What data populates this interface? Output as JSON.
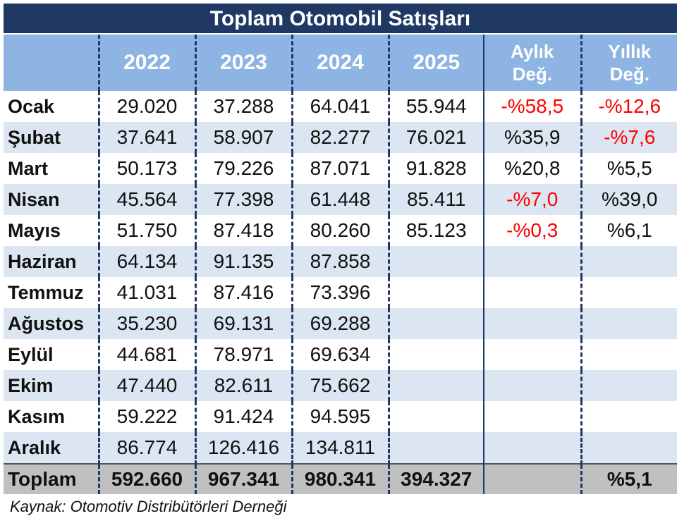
{
  "title": "Toplam Otomobil Satışları",
  "columns": {
    "years": [
      "2022",
      "2023",
      "2024",
      "2025"
    ],
    "monthly_change": [
      "Aylık",
      "Değ."
    ],
    "yearly_change": [
      "Yıllık",
      "Değ."
    ]
  },
  "rows": [
    {
      "month": "Ocak",
      "y2022": "29.020",
      "y2023": "37.288",
      "y2024": "64.041",
      "y2025": "55.944",
      "monthly": "-%58,5",
      "yearly": "-%12,6"
    },
    {
      "month": "Şubat",
      "y2022": "37.641",
      "y2023": "58.907",
      "y2024": "82.277",
      "y2025": "76.021",
      "monthly": "%35,9",
      "yearly": "-%7,6"
    },
    {
      "month": "Mart",
      "y2022": "50.173",
      "y2023": "79.226",
      "y2024": "87.071",
      "y2025": "91.828",
      "monthly": "%20,8",
      "yearly": "%5,5"
    },
    {
      "month": "Nisan",
      "y2022": "45.564",
      "y2023": "77.398",
      "y2024": "61.448",
      "y2025": "85.411",
      "monthly": "-%7,0",
      "yearly": "%39,0"
    },
    {
      "month": "Mayıs",
      "y2022": "51.750",
      "y2023": "87.418",
      "y2024": "80.260",
      "y2025": "85.123",
      "monthly": "-%0,3",
      "yearly": "%6,1"
    },
    {
      "month": "Haziran",
      "y2022": "64.134",
      "y2023": "91.135",
      "y2024": "87.858",
      "y2025": "",
      "monthly": "",
      "yearly": ""
    },
    {
      "month": "Temmuz",
      "y2022": "41.031",
      "y2023": "87.416",
      "y2024": "73.396",
      "y2025": "",
      "monthly": "",
      "yearly": ""
    },
    {
      "month": "Ağustos",
      "y2022": "35.230",
      "y2023": "69.131",
      "y2024": "69.288",
      "y2025": "",
      "monthly": "",
      "yearly": ""
    },
    {
      "month": "Eylül",
      "y2022": "44.681",
      "y2023": "78.971",
      "y2024": "69.634",
      "y2025": "",
      "monthly": "",
      "yearly": ""
    },
    {
      "month": "Ekim",
      "y2022": "47.440",
      "y2023": "82.611",
      "y2024": "75.662",
      "y2025": "",
      "monthly": "",
      "yearly": ""
    },
    {
      "month": "Kasım",
      "y2022": "59.222",
      "y2023": "91.424",
      "y2024": "94.595",
      "y2025": "",
      "monthly": "",
      "yearly": ""
    },
    {
      "month": "Aralık",
      "y2022": "86.774",
      "y2023": "126.416",
      "y2024": "134.811",
      "y2025": "",
      "monthly": "",
      "yearly": ""
    }
  ],
  "total": {
    "month": "Toplam",
    "y2022": "592.660",
    "y2023": "967.341",
    "y2024": "980.341",
    "y2025": "394.327",
    "monthly": "",
    "yearly": "%5,1"
  },
  "source": "Kaynak: Otomotiv Distribütörleri Derneği",
  "colors": {
    "header_dark": "#1f3864",
    "header_light": "#8db4e2",
    "row_alt": "#dce6f2",
    "total_bg": "#c0c0c0",
    "negative": "#ff0000"
  }
}
